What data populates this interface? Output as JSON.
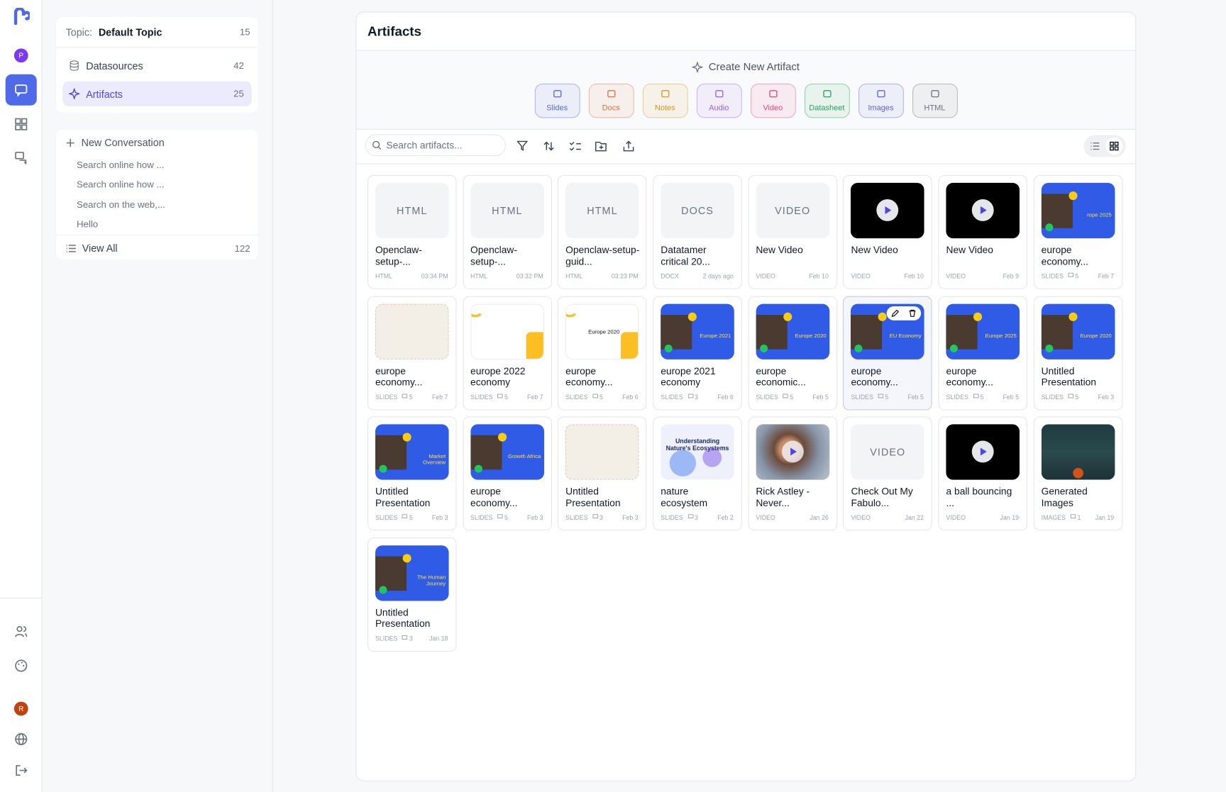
{
  "rail": {
    "avatar_top": "P",
    "avatar_bottom": "R"
  },
  "sidebar": {
    "topic_label": "Topic:",
    "topic_name": "Default Topic",
    "topic_count": 15,
    "nav": [
      {
        "label": "Datasources",
        "count": 42
      },
      {
        "label": "Artifacts",
        "count": 25
      }
    ],
    "new_conversation": "New Conversation",
    "conversations": [
      "Search online how ...",
      "Search online how ...",
      "Search on the web,...",
      "Hello"
    ],
    "view_all": "View All",
    "view_all_count": 122
  },
  "main": {
    "title": "Artifacts",
    "create_label": "Create New Artifact",
    "create_buttons": [
      {
        "label": "Slides",
        "color": "#4f6ae8"
      },
      {
        "label": "Docs",
        "color": "#e0703a"
      },
      {
        "label": "Notes",
        "color": "#d9951e"
      },
      {
        "label": "Audio",
        "color": "#9b5de5"
      },
      {
        "label": "Video",
        "color": "#e8457a"
      },
      {
        "label": "Datasheet",
        "color": "#22a35a"
      },
      {
        "label": "Images",
        "color": "#5b63d6"
      },
      {
        "label": "HTML",
        "color": "#6b7280"
      }
    ],
    "search_placeholder": "Search artifacts...",
    "cards": [
      {
        "title": "Openclaw-setup-...",
        "tag": "HTML",
        "date": "03:34 PM",
        "thumb": "placeholder",
        "thumb_text": "HTML"
      },
      {
        "title": "Openclaw-setup-...",
        "tag": "HTML",
        "date": "03:32 PM",
        "thumb": "placeholder",
        "thumb_text": "HTML"
      },
      {
        "title": "Openclaw-setup-guid...",
        "tag": "HTML",
        "date": "03:23 PM",
        "thumb": "placeholder",
        "thumb_text": "HTML"
      },
      {
        "title": "Datatamer critical 20...",
        "tag": "DOCX",
        "date": "2 days ago",
        "thumb": "placeholder",
        "thumb_text": "DOCS"
      },
      {
        "title": "New Video",
        "tag": "VIDEO",
        "date": "Feb 10",
        "thumb": "placeholder",
        "thumb_text": "VIDEO"
      },
      {
        "title": "New Video",
        "tag": "VIDEO",
        "date": "Feb 10",
        "thumb": "black"
      },
      {
        "title": "New Video",
        "tag": "VIDEO",
        "date": "Feb 9",
        "thumb": "black"
      },
      {
        "title": "europe economy...",
        "tag": "SLIDES",
        "count": 5,
        "date": "Feb 7",
        "thumb": "blue",
        "thumb_text": "rope 2025"
      },
      {
        "title": "europe economy...",
        "tag": "SLIDES",
        "count": 5,
        "date": "Feb 7",
        "thumb": "beige"
      },
      {
        "title": "europe 2022 economy",
        "tag": "SLIDES",
        "count": 5,
        "date": "Feb 7",
        "thumb": "white"
      },
      {
        "title": "europe economy...",
        "tag": "SLIDES",
        "count": 5,
        "date": "Feb 6",
        "thumb": "white",
        "thumb_text": "Europe 2020"
      },
      {
        "title": "europe 2021 economy",
        "tag": "SLIDES",
        "count": 3,
        "date": "Feb 6",
        "thumb": "blue",
        "thumb_text": "Europe 2021"
      },
      {
        "title": "europe economic...",
        "tag": "SLIDES",
        "count": 5,
        "date": "Feb 5",
        "thumb": "blue",
        "thumb_text": "Europe 2020"
      },
      {
        "title": "europe economy...",
        "tag": "SLIDES",
        "count": 5,
        "date": "Feb 5",
        "thumb": "blue",
        "thumb_text": "EU Economy",
        "hover": true
      },
      {
        "title": "europe economy...",
        "tag": "SLIDES",
        "count": 5,
        "date": "Feb 5",
        "thumb": "blue",
        "thumb_text": "Europe 2025"
      },
      {
        "title": "Untitled Presentation",
        "tag": "SLIDES",
        "count": 5,
        "date": "Feb 3",
        "thumb": "blue",
        "thumb_text": "Europe 2020"
      },
      {
        "title": "Untitled Presentation",
        "tag": "SLIDES",
        "count": 5,
        "date": "Feb 3",
        "thumb": "blue",
        "thumb_text": "Market Overview"
      },
      {
        "title": "europe economy...",
        "tag": "SLIDES",
        "count": 5,
        "date": "Feb 3",
        "thumb": "blue",
        "thumb_text": "Growth Africa"
      },
      {
        "title": "Untitled Presentation",
        "tag": "SLIDES",
        "count": 3,
        "date": "Feb 3",
        "thumb": "beige"
      },
      {
        "title": "nature ecosystem",
        "tag": "SLIDES",
        "count": 3,
        "date": "Feb 2",
        "thumb": "nature",
        "thumb_text": "Understanding Nature's Ecosystems"
      },
      {
        "title": "Rick Astley - Never...",
        "tag": "VIDEO",
        "date": "Jan 26",
        "thumb": "photo"
      },
      {
        "title": "Check Out My Fabulo...",
        "tag": "VIDEO",
        "date": "Jan 22",
        "thumb": "placeholder",
        "thumb_text": "VIDEO"
      },
      {
        "title": "a ball bouncing ...",
        "tag": "VIDEO",
        "date": "Jan 19",
        "thumb": "black"
      },
      {
        "title": "Generated Images",
        "tag": "IMAGES",
        "count": 1,
        "date": "Jan 19",
        "thumb": "sea"
      },
      {
        "title": "Untitled Presentation",
        "tag": "SLIDES",
        "count": 3,
        "date": "Jan 18",
        "thumb": "blue",
        "thumb_text": "The Human Journey"
      }
    ]
  }
}
